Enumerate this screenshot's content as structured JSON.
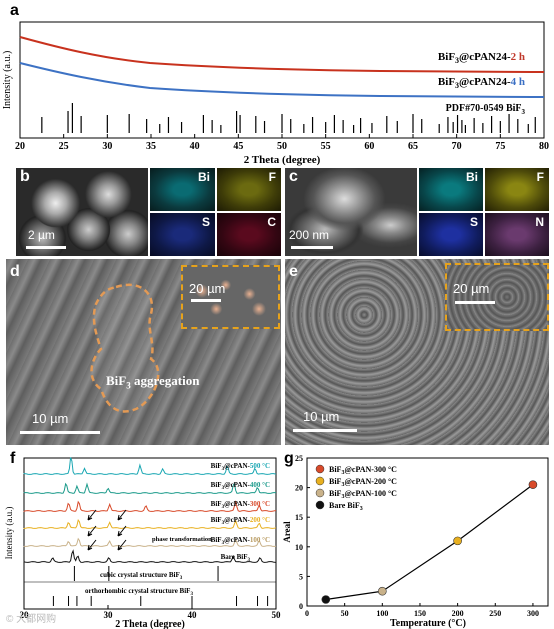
{
  "panels": {
    "a": {
      "letter": "a",
      "xlabel": "2 Theta (degree)",
      "ylabel": "Intensity (a.u.)",
      "xticks": [
        "20",
        "25",
        "30",
        "35",
        "40",
        "45",
        "50",
        "55",
        "60",
        "65",
        "70",
        "75",
        "80"
      ],
      "legend": [
        {
          "text_main": "BiF",
          "sub": "3",
          "text_tail": "@cPAN24-",
          "suffix": "2 h",
          "suffix_color": "#c0392b"
        },
        {
          "text_main": "BiF",
          "sub": "3",
          "text_tail": "@cPAN24-",
          "suffix": "4 h",
          "suffix_color": "#3a6fc4"
        },
        {
          "text_main": "PDF#70-0549 BiF",
          "sub": "3",
          "text_tail": "",
          "suffix": "",
          "suffix_color": "#000"
        }
      ],
      "colors": {
        "red": "#c8321e",
        "blue": "#3d72c4"
      }
    },
    "b": {
      "letter": "b",
      "scale": "2 µm",
      "maps": [
        "Bi",
        "F",
        "S",
        "C"
      ]
    },
    "c": {
      "letter": "c",
      "scale": "200 nm",
      "maps": [
        "Bi",
        "F",
        "S",
        "N"
      ]
    },
    "d": {
      "letter": "d",
      "scale": "10 µm",
      "inset_scale": "20 µm",
      "annotation_main": "BiF",
      "annotation_sub": "3",
      "annotation_tail": " aggregation"
    },
    "e": {
      "letter": "e",
      "scale": "10 µm",
      "inset_scale": "20 µm"
    },
    "f": {
      "letter": "f",
      "xlabel": "2 Theta (degree)",
      "ylabel": "Intensity (a.u.)",
      "xticks": [
        "20",
        "30",
        "40",
        "50"
      ],
      "traces": [
        {
          "name_main": "BiF",
          "sub": "3",
          "tail": "@cPAN-",
          "temp": "500 °C",
          "color": "#1aa7b3"
        },
        {
          "name_main": "BiF",
          "sub": "3",
          "tail": "@cPAN-",
          "temp": "400 °C",
          "color": "#1a9a8a"
        },
        {
          "name_main": "BiF",
          "sub": "3",
          "tail": "@cPAN-",
          "temp": "300 °C",
          "color": "#d84a2a"
        },
        {
          "name_main": "BiF",
          "sub": "3",
          "tail": "@cPAN-",
          "temp": "200 °C",
          "color": "#e8b020"
        },
        {
          "name_main": "BiF",
          "sub": "3",
          "tail": "@cPAN-",
          "temp": "100 °C",
          "color": "#c9b28a"
        },
        {
          "name_main": "Bare BiF",
          "sub": "3",
          "tail": "",
          "temp": "",
          "color": "#111111"
        }
      ],
      "annotation": "phase transformation",
      "ref1_main": "cubic crystal structure BiF",
      "ref1_sub": "3",
      "ref2_main": "orthorhombic crystal structure BiF",
      "ref2_sub": "3"
    },
    "g": {
      "letter": "g",
      "xlabel": "Temperature (°C)",
      "ylabel": "Areal",
      "chart_data": {
        "type": "line",
        "x": [
          25,
          100,
          200,
          300
        ],
        "y": [
          1.1,
          2.5,
          11,
          20.5
        ],
        "xlim": [
          0,
          320
        ],
        "ylim": [
          0,
          25
        ],
        "xticks": [
          "0",
          "50",
          "100",
          "150",
          "200",
          "250",
          "300"
        ],
        "yticks": [
          "0",
          "5",
          "10",
          "15",
          "20",
          "25"
        ],
        "point_colors": [
          "#111111",
          "#c9b28a",
          "#e8b020",
          "#d84a2a"
        ],
        "legend": [
          {
            "main": "BiF",
            "sub": "3",
            "tail": "@cPAN-300 °C",
            "color": "#d84a2a"
          },
          {
            "main": "BiF",
            "sub": "3",
            "tail": "@cPAN-200 °C",
            "color": "#e8b020"
          },
          {
            "main": "BiF",
            "sub": "3",
            "tail": "@cPAN-100 °C",
            "color": "#c9b28a"
          },
          {
            "main": "Bare BiF",
            "sub": "3",
            "tail": "",
            "color": "#111111"
          }
        ]
      }
    }
  },
  "watermark": "© 大都网购"
}
